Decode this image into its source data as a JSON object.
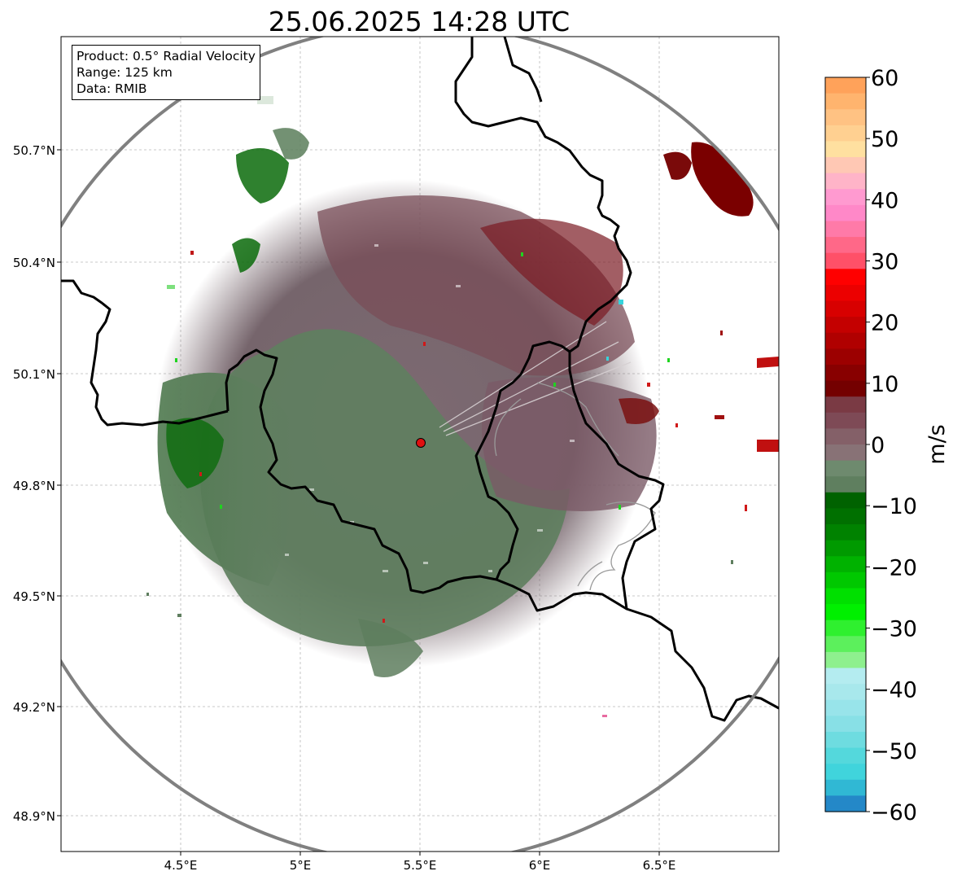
{
  "title": "25.06.2025 14:28 UTC",
  "info": {
    "product": "Product: 0.5° Radial Velocity",
    "range": "Range: 125 km",
    "data": "Data: RMIB"
  },
  "axes": {
    "lon_ticks": [
      "4.5°E",
      "5°E",
      "5.5°E",
      "6°E",
      "6.5°E"
    ],
    "lat_ticks": [
      "50.7°N",
      "50.4°N",
      "50.1°N",
      "49.8°N",
      "49.5°N",
      "49.2°N",
      "48.9°N"
    ]
  },
  "colorbar": {
    "label": "m/s",
    "ticks": [
      "60",
      "50",
      "40",
      "30",
      "20",
      "10",
      "0",
      "−10",
      "−20",
      "−30",
      "−40",
      "−50",
      "−60"
    ],
    "min": -60,
    "max": 60
  },
  "radar_site": {
    "lon": 5.5,
    "lat": 49.915
  },
  "colors": {
    "incoming_strong": "#006400",
    "incoming": "#5b7f5b",
    "near_zero": "#857078",
    "outgoing": "#7d4350",
    "outgoing_strong": "#7a0000",
    "site_marker": "#e01010",
    "range_ring": "#808080"
  }
}
